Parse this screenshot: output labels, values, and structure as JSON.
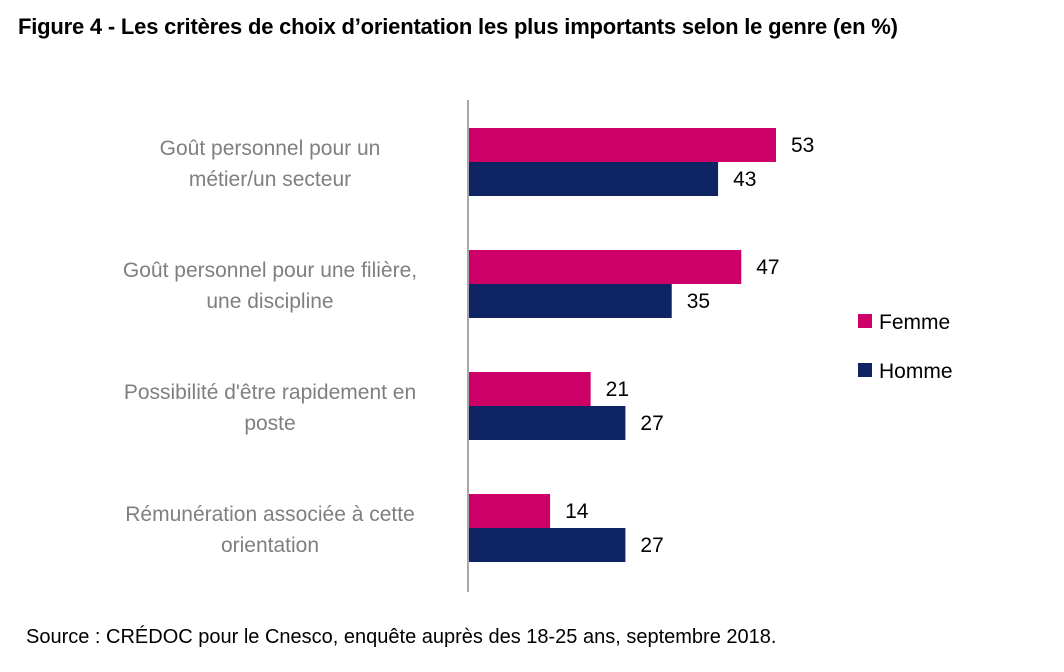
{
  "title": "Figure 4 - Les critères de choix d’orientation les plus importants selon le genre (en %)",
  "source": "Source : CRÉDOC pour le Cnesco, enquête auprès des 18-25 ans, septembre 2018.",
  "chart_data": {
    "type": "bar",
    "orientation": "horizontal",
    "title": "Figure 4 - Les critères de choix d’orientation les plus importants selon le genre (en %)",
    "categories": [
      [
        "Goût personnel pour un",
        "métier/un secteur"
      ],
      [
        "Goût personnel pour une filière,",
        "une discipline"
      ],
      [
        "Possibilité d'être rapidement en",
        "poste"
      ],
      [
        "Rémunération associée à cette",
        "orientation"
      ]
    ],
    "series": [
      {
        "name": "Femme",
        "color": "#cc0066",
        "values": [
          53,
          47,
          21,
          14
        ]
      },
      {
        "name": "Homme",
        "color": "#0f2462",
        "values": [
          43,
          35,
          27,
          27
        ]
      }
    ],
    "xlim": [
      0,
      60
    ],
    "grid": false,
    "legend": "right"
  }
}
